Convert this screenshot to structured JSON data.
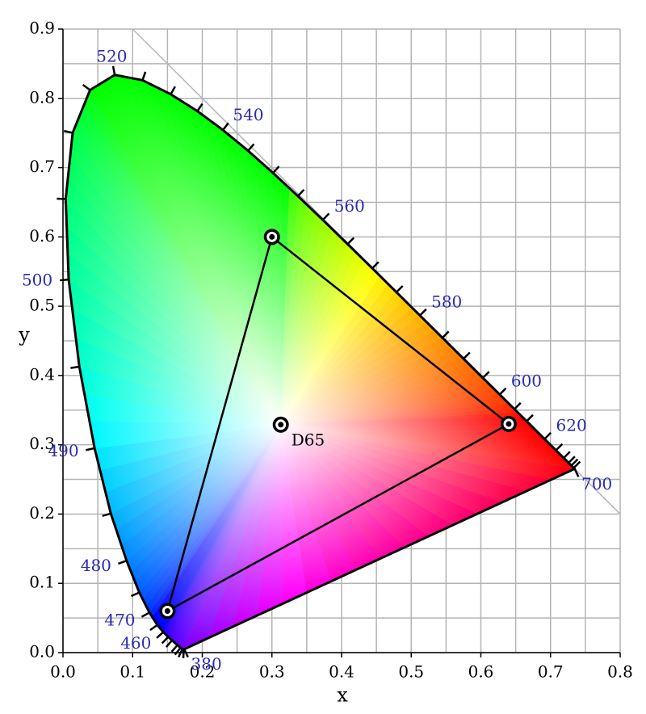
{
  "chart_data": {
    "type": "chromaticity",
    "xlabel": "x",
    "ylabel": "y",
    "xlim": [
      0,
      0.8
    ],
    "ylim": [
      0,
      0.9
    ],
    "xticks": [
      {
        "value": 0,
        "label": "0.0"
      },
      0.1,
      0.2,
      0.3,
      0.4,
      0.5,
      0.6,
      0.7,
      0.8
    ],
    "yticks": [
      {
        "value": 0,
        "label": "0.0"
      },
      0.1,
      0.2,
      0.3,
      0.4,
      0.5,
      0.6,
      0.7,
      0.8,
      0.9
    ],
    "minor_xticks": [
      0.05,
      0.15,
      0.25,
      0.35,
      0.45,
      0.55,
      0.65,
      0.75
    ],
    "minor_yticks": [
      0.05,
      0.15,
      0.25,
      0.35,
      0.45,
      0.55,
      0.65,
      0.75,
      0.85
    ],
    "grid": true,
    "grid_color": "#b4b4b4",
    "diagonal": {
      "x": [
        0.1,
        0.8
      ],
      "y": [
        0.9,
        0.2
      ],
      "color": "#b4b4b4"
    },
    "locus": {
      "wavelengths": [
        380,
        400,
        420,
        430,
        440,
        450,
        455,
        460,
        465,
        470,
        475,
        480,
        485,
        490,
        495,
        500,
        505,
        510,
        515,
        520,
        525,
        530,
        535,
        540,
        545,
        550,
        555,
        560,
        565,
        570,
        575,
        580,
        585,
        590,
        595,
        600,
        605,
        610,
        620,
        630,
        640,
        650,
        660,
        680,
        700
      ],
      "x": [
        0.1741,
        0.1733,
        0.1714,
        0.1689,
        0.1644,
        0.1566,
        0.151,
        0.144,
        0.1355,
        0.1241,
        0.1096,
        0.0913,
        0.0687,
        0.0454,
        0.0235,
        0.0082,
        0.0039,
        0.0139,
        0.0389,
        0.0743,
        0.1142,
        0.1547,
        0.1929,
        0.2296,
        0.2658,
        0.3016,
        0.3373,
        0.3731,
        0.4087,
        0.4441,
        0.4788,
        0.5125,
        0.5448,
        0.5752,
        0.6029,
        0.627,
        0.6482,
        0.6658,
        0.6915,
        0.7079,
        0.719,
        0.726,
        0.73,
        0.7334,
        0.7347
      ],
      "y": [
        0.005,
        0.0048,
        0.0051,
        0.0069,
        0.0109,
        0.0177,
        0.0227,
        0.0297,
        0.0399,
        0.0578,
        0.0868,
        0.1327,
        0.2007,
        0.295,
        0.4127,
        0.5384,
        0.6548,
        0.7502,
        0.812,
        0.8338,
        0.8262,
        0.8059,
        0.7816,
        0.7543,
        0.7243,
        0.6923,
        0.6589,
        0.6245,
        0.5896,
        0.5547,
        0.5202,
        0.4866,
        0.4544,
        0.4242,
        0.3965,
        0.3725,
        0.3514,
        0.334,
        0.3083,
        0.292,
        0.2809,
        0.274,
        0.27,
        0.2666,
        0.2653
      ],
      "color": "#000000"
    },
    "labeled_wavelengths": [
      380,
      460,
      470,
      480,
      490,
      500,
      520,
      540,
      560,
      580,
      600,
      620,
      700
    ],
    "wavelength_label_color": "#2a2ab4",
    "gamut": {
      "x": [
        0.64,
        0.3,
        0.15
      ],
      "y": [
        0.33,
        0.6,
        0.06
      ],
      "color": "#000000"
    },
    "white_point": {
      "label": "D65",
      "x": 0.3127,
      "y": 0.329
    }
  }
}
